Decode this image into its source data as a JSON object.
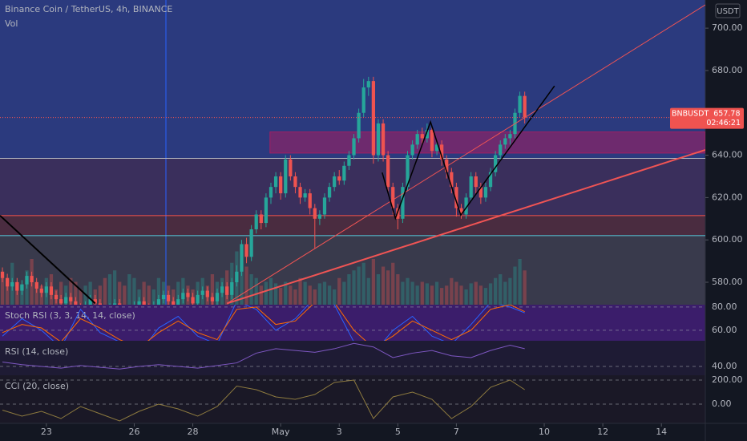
{
  "chart_data": {
    "type": "candlestick",
    "title": "Binance Coin / TetherUS, 4h, BINANCE",
    "volume_label": "Vol",
    "currency": "USDT",
    "symbol": "BNBUSDT",
    "countdown": "02:46:21",
    "up_color": "#26a69a",
    "down_color": "#ef5350",
    "xlim": [
      -0.5,
      144
    ],
    "xticks": [
      {
        "value": 9,
        "label": "23"
      },
      {
        "value": 27,
        "label": "26"
      },
      {
        "value": 39,
        "label": "28"
      },
      {
        "value": 57,
        "label": "May"
      },
      {
        "value": 69,
        "label": "3"
      },
      {
        "value": 81,
        "label": "5"
      },
      {
        "value": 93,
        "label": "7"
      },
      {
        "value": 111,
        "label": "10"
      },
      {
        "value": 123,
        "label": "12"
      },
      {
        "value": 135,
        "label": "14"
      }
    ],
    "ylim": [
      569.4,
      713.3
    ],
    "yticks": [
      {
        "value": 580,
        "label": "580.00"
      },
      {
        "value": 600,
        "label": "600.00"
      },
      {
        "value": 620,
        "label": "620.00"
      },
      {
        "value": 640,
        "label": "640.00"
      },
      {
        "value": 660,
        "label": "660.00"
      },
      {
        "value": 680,
        "label": "680.00"
      },
      {
        "value": 700,
        "label": "700.00"
      }
    ],
    "ohlc": [
      [
        585,
        587,
        580,
        582
      ],
      [
        582,
        584,
        576,
        578
      ],
      [
        578,
        582,
        576,
        580
      ],
      [
        580,
        582,
        574,
        576
      ],
      [
        576,
        581,
        574,
        579
      ],
      [
        579,
        585,
        577,
        583
      ],
      [
        583,
        585,
        578,
        580
      ],
      [
        580,
        582,
        575,
        577
      ],
      [
        577,
        579,
        573,
        575
      ],
      [
        575,
        580,
        573,
        578
      ],
      [
        578,
        580,
        572,
        574
      ],
      [
        574,
        576,
        570,
        572
      ],
      [
        572,
        574,
        568,
        570
      ],
      [
        570,
        575,
        568,
        573
      ],
      [
        573,
        575,
        569,
        571
      ],
      [
        571,
        573,
        566,
        568
      ],
      [
        568,
        570,
        564,
        566
      ],
      [
        566,
        571,
        564,
        569
      ],
      [
        569,
        574,
        567,
        572
      ],
      [
        572,
        574,
        568,
        570
      ],
      [
        570,
        572,
        565,
        567
      ],
      [
        567,
        569,
        563,
        565
      ],
      [
        565,
        570,
        563,
        568
      ],
      [
        568,
        572,
        566,
        570
      ],
      [
        570,
        572,
        564,
        566
      ],
      [
        566,
        568,
        561,
        563
      ],
      [
        563,
        569,
        561,
        567
      ],
      [
        567,
        571,
        565,
        569
      ],
      [
        569,
        573,
        567,
        571
      ],
      [
        571,
        573,
        566,
        568
      ],
      [
        568,
        570,
        564,
        566
      ],
      [
        566,
        571,
        564,
        569
      ],
      [
        569,
        574,
        567,
        572
      ],
      [
        572,
        576,
        570,
        574
      ],
      [
        574,
        576,
        569,
        571
      ],
      [
        571,
        573,
        566,
        568
      ],
      [
        568,
        574,
        566,
        572
      ],
      [
        572,
        577,
        570,
        575
      ],
      [
        575,
        577,
        571,
        573
      ],
      [
        573,
        575,
        568,
        570
      ],
      [
        570,
        576,
        568,
        574
      ],
      [
        574,
        578,
        572,
        576
      ],
      [
        576,
        578,
        571,
        573
      ],
      [
        573,
        575,
        569,
        571
      ],
      [
        571,
        577,
        569,
        575
      ],
      [
        575,
        580,
        573,
        578
      ],
      [
        578,
        580,
        572,
        574
      ],
      [
        574,
        582,
        572,
        580
      ],
      [
        580,
        588,
        578,
        585
      ],
      [
        585,
        600,
        583,
        598
      ],
      [
        598,
        601,
        589,
        592
      ],
      [
        592,
        607,
        590,
        605
      ],
      [
        605,
        614,
        603,
        612
      ],
      [
        612,
        614,
        605,
        608
      ],
      [
        608,
        622,
        606,
        620
      ],
      [
        620,
        627,
        617,
        625
      ],
      [
        625,
        632,
        622,
        630
      ],
      [
        630,
        632,
        619,
        622
      ],
      [
        622,
        640,
        620,
        638
      ],
      [
        638,
        640,
        628,
        630
      ],
      [
        630,
        632,
        622,
        625
      ],
      [
        625,
        627,
        617,
        620
      ],
      [
        620,
        624,
        618,
        622
      ],
      [
        622,
        624,
        612,
        615
      ],
      [
        615,
        617,
        596,
        610
      ],
      [
        610,
        614,
        607,
        612
      ],
      [
        612,
        622,
        610,
        620
      ],
      [
        620,
        627,
        618,
        625
      ],
      [
        625,
        632,
        623,
        630
      ],
      [
        630,
        633,
        626,
        628
      ],
      [
        628,
        637,
        626,
        635
      ],
      [
        635,
        642,
        633,
        640
      ],
      [
        640,
        650,
        638,
        648
      ],
      [
        648,
        662,
        646,
        660
      ],
      [
        660,
        676,
        658,
        672
      ],
      [
        672,
        677,
        668,
        675
      ],
      [
        675,
        677,
        636,
        640
      ],
      [
        640,
        657,
        637,
        655
      ],
      [
        655,
        657,
        637,
        640
      ],
      [
        640,
        642,
        622,
        625
      ],
      [
        625,
        627,
        612,
        615
      ],
      [
        615,
        617,
        605,
        610
      ],
      [
        610,
        627,
        608,
        625
      ],
      [
        625,
        642,
        623,
        640
      ],
      [
        640,
        647,
        638,
        645
      ],
      [
        645,
        652,
        643,
        650
      ],
      [
        650,
        653,
        645,
        648
      ],
      [
        648,
        655,
        646,
        652
      ],
      [
        652,
        654,
        639,
        642
      ],
      [
        642,
        647,
        640,
        645
      ],
      [
        645,
        647,
        635,
        638
      ],
      [
        638,
        640,
        629,
        632
      ],
      [
        632,
        634,
        622,
        625
      ],
      [
        625,
        627,
        611,
        615
      ],
      [
        615,
        617,
        610,
        612
      ],
      [
        612,
        622,
        610,
        620
      ],
      [
        620,
        632,
        618,
        630
      ],
      [
        630,
        632,
        622,
        625
      ],
      [
        625,
        627,
        617,
        620
      ],
      [
        620,
        627,
        618,
        625
      ],
      [
        625,
        634,
        623,
        632
      ],
      [
        632,
        642,
        630,
        640
      ],
      [
        640,
        647,
        638,
        645
      ],
      [
        645,
        650,
        643,
        648
      ],
      [
        648,
        652,
        645,
        650
      ],
      [
        650,
        662,
        648,
        660
      ],
      [
        660,
        670,
        658,
        668
      ],
      [
        668,
        670,
        655,
        657.78
      ]
    ],
    "volume": [
      40,
      35,
      55,
      30,
      25,
      45,
      60,
      30,
      25,
      35,
      40,
      20,
      30,
      25,
      35,
      30,
      20,
      25,
      30,
      20,
      25,
      35,
      40,
      45,
      30,
      25,
      40,
      35,
      20,
      30,
      25,
      20,
      35,
      30,
      25,
      20,
      30,
      35,
      25,
      20,
      30,
      35,
      25,
      40,
      30,
      35,
      45,
      55,
      70,
      60,
      50,
      40,
      35,
      25,
      30,
      35,
      28,
      22,
      30,
      25,
      20,
      35,
      30,
      25,
      20,
      28,
      30,
      25,
      20,
      35,
      30,
      40,
      45,
      50,
      55,
      35,
      60,
      40,
      50,
      45,
      55,
      40,
      30,
      35,
      30,
      25,
      30,
      28,
      25,
      30,
      22,
      25,
      35,
      30,
      25,
      20,
      28,
      30,
      25,
      22,
      28,
      35,
      40,
      30,
      35,
      50,
      60,
      45
    ],
    "volume_lim": [
      0,
      100
    ],
    "levels": [
      {
        "price": 638.5,
        "color": "#b2b5be"
      },
      {
        "price": 611.5,
        "color": "#f05454"
      },
      {
        "price": 602,
        "color": "#4dd0e1"
      }
    ],
    "zone": {
      "x": [
        54.8,
        144
      ],
      "y": [
        641,
        651
      ],
      "color": "#c2185b"
    },
    "trendlines": [
      {
        "x": [
          46,
          144
        ],
        "y": [
          570,
          642.5
        ],
        "color": "#f05454",
        "width": 2
      },
      {
        "x": [
          46,
          144
        ],
        "y": [
          570,
          711
        ],
        "color": "#f05454",
        "width": 1
      },
      {
        "x": [
          -0.5,
          19
        ],
        "y": [
          611.5,
          570
        ],
        "color": "#000000",
        "width": 2
      },
      {
        "x": [
          77.8,
          80.5,
          87.7,
          93.9,
          113.1
        ],
        "y": [
          631.8,
          610.2,
          655.7,
          611.7,
          672.7
        ],
        "color": "#000000",
        "width": 1.5
      }
    ],
    "indicators": [
      {
        "label": "Stoch RSI (3, 3, 14, 14, close)",
        "ylim": [
          51,
          82
        ],
        "yticks": [
          {
            "value": 80,
            "label": "80.00"
          },
          {
            "value": 60,
            "label": "60.00"
          }
        ],
        "x": [
          0,
          4,
          8,
          12,
          16,
          20,
          24,
          28,
          32,
          36,
          40,
          44,
          48,
          52,
          56,
          60,
          64,
          68,
          72,
          76,
          80,
          84,
          88,
          92,
          96,
          100,
          104,
          107
        ],
        "series": [
          {
            "color": "#2962ff",
            "values": [
              55,
              70,
              60,
              45,
              78,
              58,
              50,
              40,
              62,
              72,
              55,
              48,
              85,
              78,
              60,
              70,
              88,
              82,
              50,
              40,
              60,
              72,
              55,
              48,
              65,
              84,
              80,
              75
            ]
          },
          {
            "color": "#ff6d00",
            "values": [
              58,
              65,
              62,
              50,
              70,
              62,
              52,
              45,
              58,
              68,
              58,
              52,
              78,
              80,
              65,
              68,
              84,
              84,
              60,
              45,
              55,
              68,
              60,
              52,
              60,
              78,
              82,
              76
            ]
          }
        ]
      },
      {
        "label": "RSI (14, close)",
        "ylim": [
          30,
          69
        ],
        "yticks": [
          {
            "value": 40,
            "label": "40.00"
          }
        ],
        "x": [
          0,
          4,
          8,
          12,
          16,
          20,
          24,
          28,
          32,
          36,
          40,
          44,
          48,
          52,
          56,
          60,
          64,
          68,
          72,
          76,
          80,
          84,
          88,
          92,
          96,
          100,
          104,
          107
        ],
        "series": [
          {
            "color": "#7e57c2",
            "values": [
              45,
              42,
              40,
              38,
              41,
              39,
              37,
              40,
              42,
              40,
              38,
              41,
              44,
              55,
              60,
              58,
              56,
              60,
              66,
              62,
              50,
              55,
              58,
              52,
              50,
              58,
              64,
              60
            ]
          }
        ]
      },
      {
        "label": "CCI (20, close)",
        "ylim": [
          -160,
          240
        ],
        "yticks": [
          {
            "value": 200,
            "label": "200.00"
          },
          {
            "value": 0,
            "label": "0.00"
          }
        ],
        "x": [
          0,
          4,
          8,
          12,
          16,
          20,
          24,
          28,
          32,
          36,
          40,
          44,
          48,
          52,
          56,
          60,
          64,
          68,
          72,
          76,
          80,
          84,
          88,
          92,
          96,
          100,
          104,
          107
        ],
        "series": [
          {
            "color": "#8d7a3f",
            "values": [
              -50,
              -100,
              -60,
              -120,
              -20,
              -80,
              -140,
              -60,
              0,
              -40,
              -100,
              -20,
              150,
              120,
              60,
              40,
              80,
              180,
              200,
              -120,
              60,
              100,
              40,
              -120,
              -20,
              140,
              200,
              120
            ]
          }
        ]
      }
    ]
  }
}
